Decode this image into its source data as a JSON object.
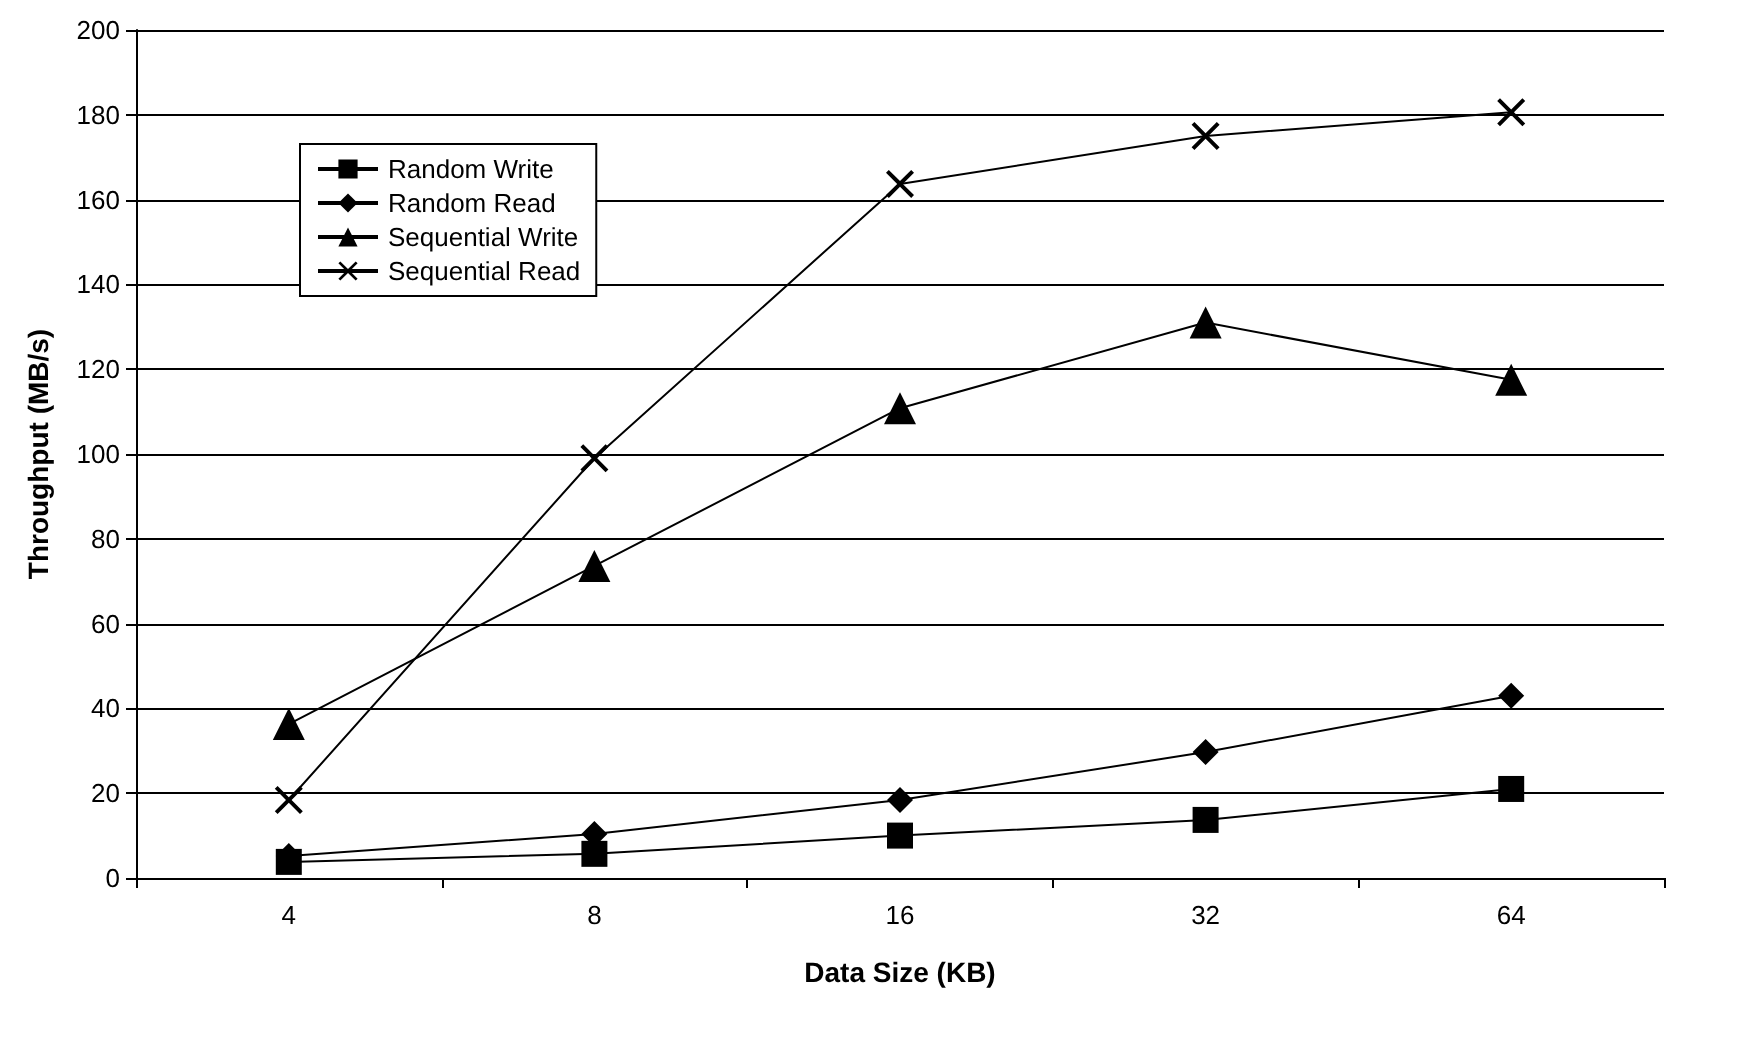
{
  "chart_data": {
    "type": "line",
    "xlabel": "Data Size (KB)",
    "ylabel": "Throughput (MB/s)",
    "categories": [
      "4",
      "8",
      "16",
      "32",
      "64"
    ],
    "ylim": [
      0,
      200
    ],
    "yticks": [
      0,
      20,
      40,
      60,
      80,
      100,
      120,
      140,
      160,
      180,
      200
    ],
    "grid": "y",
    "legend": "top left",
    "series": [
      {
        "name": "Random Write",
        "color": "#000000",
        "marker": "square",
        "values": [
          3.8,
          5.7,
          10,
          13.7,
          21
        ]
      },
      {
        "name": "Random Read",
        "color": "#000000",
        "marker": "diamond",
        "values": [
          5.2,
          10.4,
          18.4,
          29.7,
          43
        ]
      },
      {
        "name": "Sequential Write",
        "color": "#000000",
        "marker": "triangle",
        "values": [
          36.3,
          73.6,
          110.8,
          131,
          117.5
        ]
      },
      {
        "name": "Sequential Read",
        "color": "#000000",
        "marker": "cross",
        "values": [
          18.4,
          99,
          163.7,
          175,
          180.6
        ]
      }
    ]
  }
}
